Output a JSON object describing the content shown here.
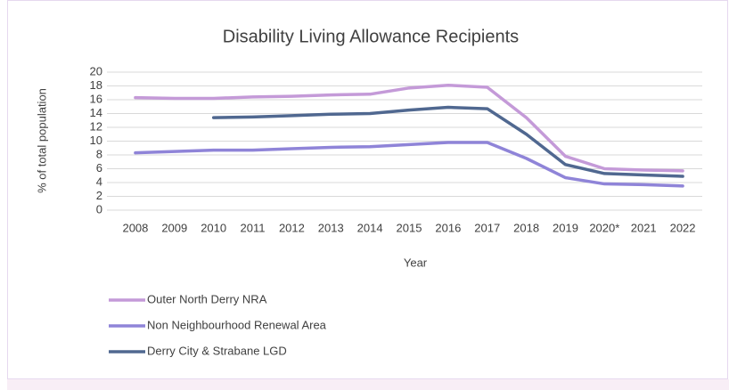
{
  "chart_data": {
    "type": "line",
    "title": "Disability Living Allowance Recipients",
    "x_label": "Year",
    "y_label": "% of total population",
    "categories": [
      "2008",
      "2009",
      "2010",
      "2011",
      "2012",
      "2013",
      "2014",
      "2015",
      "2016",
      "2017",
      "2018",
      "2019",
      "2020*",
      "2021",
      "2022"
    ],
    "series": [
      {
        "name": "Outer North Derry NRA",
        "color": "#c49ad8",
        "values": [
          16.3,
          16.2,
          16.2,
          16.4,
          16.5,
          16.7,
          16.8,
          17.7,
          18.1,
          17.8,
          13.4,
          7.8,
          6.0,
          5.8,
          5.7
        ]
      },
      {
        "name": "Non Neighbourhood Renewal Area",
        "color": "#8f84d8",
        "values": [
          8.3,
          8.5,
          8.7,
          8.7,
          8.9,
          9.1,
          9.2,
          9.5,
          9.8,
          9.8,
          7.5,
          4.7,
          3.8,
          3.7,
          3.5
        ]
      },
      {
        "name": "Derry City & Strabane LGD",
        "color": "#506890",
        "values": [
          null,
          null,
          13.4,
          13.5,
          13.7,
          13.9,
          14.0,
          14.5,
          14.9,
          14.7,
          11.0,
          6.6,
          5.3,
          5.1,
          4.9
        ]
      }
    ],
    "ylim": [
      0,
      20
    ],
    "yticks": [
      0,
      2,
      4,
      6,
      8,
      10,
      12,
      14,
      16,
      18,
      20
    ],
    "grid": true
  }
}
